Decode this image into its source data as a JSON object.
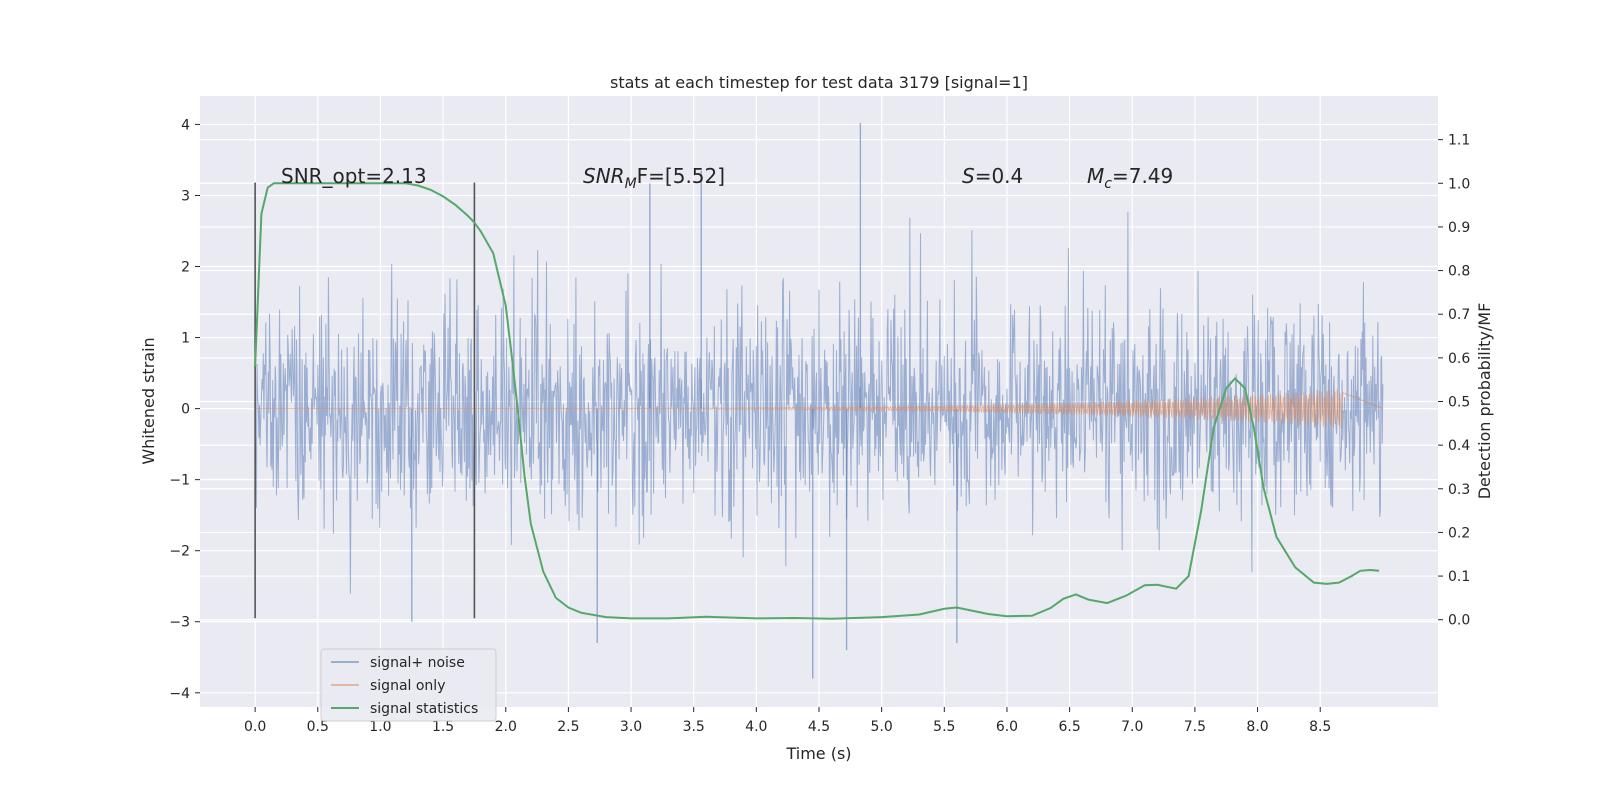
{
  "chart_data": {
    "type": "line",
    "title": "stats at each timestep for test data 3179 [signal=1]",
    "xlabel": "Time (s)",
    "ylabel": "Whitened strain",
    "y2label": "Detection probability/MF",
    "xlim": [
      -0.44,
      9.44
    ],
    "ylim": [
      -4.2,
      4.4
    ],
    "y2lim": [
      -0.2,
      1.2
    ],
    "xticks": [
      0.0,
      0.5,
      1.0,
      1.5,
      2.0,
      2.5,
      3.0,
      3.5,
      4.0,
      4.5,
      5.0,
      5.5,
      6.0,
      6.5,
      7.0,
      7.5,
      8.0,
      8.5
    ],
    "xtick_labels": [
      "0.0",
      "0.5",
      "1.0",
      "1.5",
      "2.0",
      "2.5",
      "3.0",
      "3.5",
      "4.0",
      "4.5",
      "5.0",
      "5.5",
      "6.0",
      "6.5",
      "7.0",
      "7.5",
      "8.0",
      "8.5"
    ],
    "yticks": [
      -4,
      -3,
      -2,
      -1,
      0,
      1,
      2,
      3,
      4
    ],
    "ytick_labels": [
      "−4",
      "−3",
      "−2",
      "−1",
      "0",
      "1",
      "2",
      "3",
      "4"
    ],
    "y2ticks": [
      0.0,
      0.1,
      0.2,
      0.3,
      0.4,
      0.5,
      0.6,
      0.7,
      0.8,
      0.9,
      1.0,
      1.1
    ],
    "y2tick_labels": [
      "0.0",
      "0.1",
      "0.2",
      "0.3",
      "0.4",
      "0.5",
      "0.6",
      "0.7",
      "0.8",
      "0.9",
      "1.0",
      "1.1"
    ],
    "grid": true,
    "legend_position": "lower-left",
    "series": [
      {
        "name": "signal+ noise",
        "color": "#4c72b0",
        "axis": "left",
        "description_range": {
          "x_start": 0.0,
          "x_end": 9.0,
          "typical_abs": 1.3,
          "max": 4.0,
          "min": -3.8
        },
        "spikes": [
          {
            "x": 2.73,
            "y": -3.3
          },
          {
            "x": 3.56,
            "y": 3.35
          },
          {
            "x": 4.45,
            "y": -3.8
          },
          {
            "x": 4.72,
            "y": -3.4
          },
          {
            "x": 4.83,
            "y": 4.02
          },
          {
            "x": 5.6,
            "y": -3.3
          },
          {
            "x": 3.15,
            "y": 3.17
          },
          {
            "x": 1.25,
            "y": -3.0
          }
        ]
      },
      {
        "name": "signal only",
        "color": "#dd8452",
        "axis": "left",
        "chirp": {
          "x_start": 0.0,
          "x_end": 8.68,
          "amp_start": 0.0,
          "amp_end": 0.28
        }
      },
      {
        "name": "signal statistics",
        "color": "#55a868",
        "axis": "right",
        "x": [
          0.0,
          0.05,
          0.1,
          0.15,
          0.2,
          0.3,
          0.5,
          0.8,
          1.0,
          1.2,
          1.3,
          1.4,
          1.5,
          1.6,
          1.7,
          1.75,
          1.8,
          1.9,
          2.0,
          2.05,
          2.1,
          2.15,
          2.2,
          2.3,
          2.4,
          2.5,
          2.6,
          2.8,
          3.0,
          3.3,
          3.6,
          4.0,
          4.3,
          4.6,
          5.0,
          5.3,
          5.5,
          5.6,
          5.7,
          5.85,
          6.0,
          6.2,
          6.35,
          6.45,
          6.55,
          6.65,
          6.8,
          6.95,
          7.1,
          7.2,
          7.35,
          7.45,
          7.55,
          7.65,
          7.75,
          7.82,
          7.9,
          7.97,
          8.05,
          8.15,
          8.3,
          8.45,
          8.55,
          8.65,
          8.75,
          8.82,
          8.9,
          8.97
        ],
        "values": [
          0.58,
          0.93,
          0.99,
          1.0,
          1.0,
          1.0,
          1.0,
          1.0,
          1.0,
          1.0,
          0.995,
          0.985,
          0.97,
          0.95,
          0.925,
          0.91,
          0.89,
          0.84,
          0.72,
          0.6,
          0.47,
          0.33,
          0.22,
          0.11,
          0.05,
          0.028,
          0.016,
          0.006,
          0.003,
          0.003,
          0.007,
          0.003,
          0.004,
          0.002,
          0.006,
          0.012,
          0.025,
          0.028,
          0.022,
          0.013,
          0.008,
          0.009,
          0.027,
          0.048,
          0.058,
          0.046,
          0.038,
          0.055,
          0.079,
          0.08,
          0.071,
          0.1,
          0.25,
          0.44,
          0.53,
          0.553,
          0.53,
          0.44,
          0.3,
          0.19,
          0.12,
          0.085,
          0.082,
          0.085,
          0.1,
          0.112,
          0.114,
          0.112
        ]
      }
    ],
    "vertical_markers": [
      {
        "x": 0.0,
        "y_from": -2.95,
        "y_to": 3.18,
        "color": "#555555"
      },
      {
        "x": 1.75,
        "y_from": -2.95,
        "y_to": 3.18,
        "color": "#555555"
      }
    ],
    "annotations": [
      {
        "id": "snr-opt",
        "text": "SNR_opt=2.13"
      },
      {
        "id": "snr-mf",
        "prefix": "SNR",
        "sub": "M",
        "suffix": "F=[5.52]"
      },
      {
        "id": "s-val",
        "prefix": "S",
        "suffix": "=0.4"
      },
      {
        "id": "mc-val",
        "prefix": "M",
        "sub": "c",
        "suffix": "=7.49"
      }
    ]
  }
}
